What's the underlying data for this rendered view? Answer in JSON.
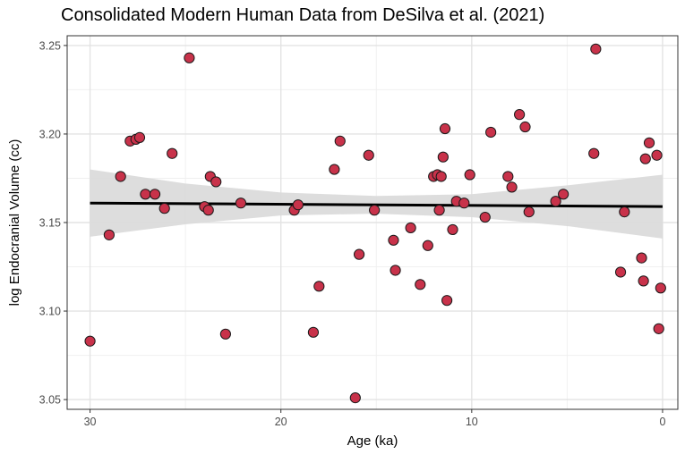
{
  "chart_data": {
    "type": "scatter",
    "title": "Consolidated Modern Human Data from DeSilva et al. (2021)",
    "xlabel": "Age (ka)",
    "ylabel": "log Endocranial Volume (cc)",
    "x_reversed": true,
    "xlim": [
      31.2,
      -0.8
    ],
    "ylim": [
      3.0445,
      3.2555
    ],
    "x_ticks": [
      30,
      20,
      10,
      0
    ],
    "x_tick_labels": [
      "30",
      "20",
      "10",
      "0"
    ],
    "y_ticks": [
      3.05,
      3.1,
      3.15,
      3.2,
      3.25
    ],
    "y_tick_labels": [
      "3.05",
      "3.10",
      "3.15",
      "3.20",
      "3.25"
    ],
    "grid": true,
    "legend": "none",
    "point_color": "#c8324a",
    "point_edge_color": "#1a1a1a",
    "trend_color": "#000000",
    "ribbon_color": "#d9d9d9",
    "points": [
      {
        "x": 30.0,
        "y": 3.083
      },
      {
        "x": 29.0,
        "y": 3.143
      },
      {
        "x": 28.4,
        "y": 3.176
      },
      {
        "x": 27.9,
        "y": 3.196
      },
      {
        "x": 27.6,
        "y": 3.197
      },
      {
        "x": 27.4,
        "y": 3.198
      },
      {
        "x": 27.1,
        "y": 3.166
      },
      {
        "x": 26.6,
        "y": 3.166
      },
      {
        "x": 26.1,
        "y": 3.158
      },
      {
        "x": 25.7,
        "y": 3.189
      },
      {
        "x": 24.8,
        "y": 3.243
      },
      {
        "x": 24.0,
        "y": 3.159
      },
      {
        "x": 23.8,
        "y": 3.157
      },
      {
        "x": 23.7,
        "y": 3.176
      },
      {
        "x": 23.4,
        "y": 3.173
      },
      {
        "x": 22.9,
        "y": 3.087
      },
      {
        "x": 22.1,
        "y": 3.161
      },
      {
        "x": 19.3,
        "y": 3.157
      },
      {
        "x": 19.1,
        "y": 3.16
      },
      {
        "x": 18.3,
        "y": 3.088
      },
      {
        "x": 18.0,
        "y": 3.114
      },
      {
        "x": 17.2,
        "y": 3.18
      },
      {
        "x": 16.9,
        "y": 3.196
      },
      {
        "x": 16.1,
        "y": 3.051
      },
      {
        "x": 15.9,
        "y": 3.132
      },
      {
        "x": 15.4,
        "y": 3.188
      },
      {
        "x": 15.1,
        "y": 3.157
      },
      {
        "x": 14.1,
        "y": 3.14
      },
      {
        "x": 14.0,
        "y": 3.123
      },
      {
        "x": 13.2,
        "y": 3.147
      },
      {
        "x": 12.7,
        "y": 3.115
      },
      {
        "x": 12.3,
        "y": 3.137
      },
      {
        "x": 12.0,
        "y": 3.176
      },
      {
        "x": 11.8,
        "y": 3.177
      },
      {
        "x": 11.7,
        "y": 3.157
      },
      {
        "x": 11.6,
        "y": 3.176
      },
      {
        "x": 11.5,
        "y": 3.187
      },
      {
        "x": 11.4,
        "y": 3.203
      },
      {
        "x": 11.3,
        "y": 3.106
      },
      {
        "x": 11.0,
        "y": 3.146
      },
      {
        "x": 10.8,
        "y": 3.162
      },
      {
        "x": 10.4,
        "y": 3.161
      },
      {
        "x": 10.1,
        "y": 3.177
      },
      {
        "x": 9.3,
        "y": 3.153
      },
      {
        "x": 9.0,
        "y": 3.201
      },
      {
        "x": 8.1,
        "y": 3.176
      },
      {
        "x": 7.9,
        "y": 3.17
      },
      {
        "x": 7.5,
        "y": 3.211
      },
      {
        "x": 7.2,
        "y": 3.204
      },
      {
        "x": 7.0,
        "y": 3.156
      },
      {
        "x": 5.6,
        "y": 3.162
      },
      {
        "x": 5.2,
        "y": 3.166
      },
      {
        "x": 3.6,
        "y": 3.189
      },
      {
        "x": 3.5,
        "y": 3.248
      },
      {
        "x": 2.2,
        "y": 3.122
      },
      {
        "x": 2.0,
        "y": 3.156
      },
      {
        "x": 1.1,
        "y": 3.13
      },
      {
        "x": 1.0,
        "y": 3.117
      },
      {
        "x": 0.9,
        "y": 3.186
      },
      {
        "x": 0.7,
        "y": 3.195
      },
      {
        "x": 0.3,
        "y": 3.188
      },
      {
        "x": 0.2,
        "y": 3.09
      },
      {
        "x": 0.1,
        "y": 3.113
      }
    ],
    "trend_line": [
      {
        "x": 30,
        "y": 3.161
      },
      {
        "x": 0,
        "y": 3.159
      }
    ],
    "confidence_band": [
      {
        "x": 30,
        "lower": 3.142,
        "upper": 3.18
      },
      {
        "x": 25,
        "lower": 3.149,
        "upper": 3.172
      },
      {
        "x": 20,
        "lower": 3.154,
        "upper": 3.167
      },
      {
        "x": 15,
        "lower": 3.155,
        "upper": 3.165
      },
      {
        "x": 10,
        "lower": 3.153,
        "upper": 3.166
      },
      {
        "x": 5,
        "lower": 3.148,
        "upper": 3.171
      },
      {
        "x": 0,
        "lower": 3.141,
        "upper": 3.177
      }
    ]
  }
}
